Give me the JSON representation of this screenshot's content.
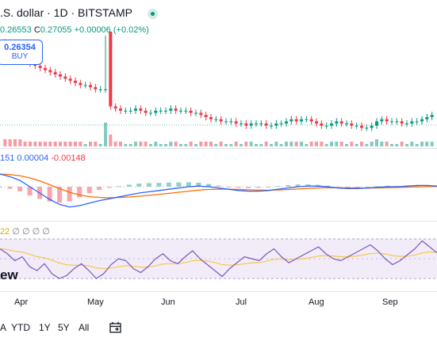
{
  "header": {
    "title": ".S. dollar · 1D · BITSTAMP",
    "ohlc": {
      "l_value": "0.26553",
      "c_label": "C",
      "c_value": "0.27055",
      "change": "+0.00006 (+0.02%)"
    },
    "buy_price": "0.26354",
    "buy_label": "BUY"
  },
  "macd": {
    "v1": "151",
    "v2": "0.00004",
    "v3": "-0.00148"
  },
  "rsi": {
    "prefix": "22",
    "zeros": "∅ ∅ ∅ ∅"
  },
  "watermark": "ew",
  "x_axis": [
    "Apr",
    "May",
    "Jun",
    "Jul",
    "Aug",
    "Sep"
  ],
  "range_buttons": [
    "A",
    "YTD",
    "1Y",
    "5Y",
    "All"
  ],
  "colors": {
    "up": "#089981",
    "down": "#f23645",
    "macd": "#2962ff",
    "signal": "#ff6d00",
    "rsi": "#7e57c2",
    "rsi_ma": "#f7c948"
  },
  "chart_data": {
    "type": "candlestick",
    "x_labels": [
      "Apr",
      "May",
      "Jun",
      "Jul",
      "Aug",
      "Sep"
    ],
    "price_series": [
      0.3,
      0.298,
      0.296,
      0.294,
      0.292,
      0.291,
      0.29,
      0.289,
      0.288,
      0.287,
      0.286,
      0.285,
      0.284,
      0.283,
      0.282,
      0.281,
      0.28,
      0.28,
      0.279,
      0.278,
      0.278,
      0.33,
      0.27,
      0.269,
      0.268,
      0.268,
      0.268,
      0.269,
      0.268,
      0.267,
      0.267,
      0.268,
      0.268,
      0.268,
      0.269,
      0.268,
      0.268,
      0.268,
      0.267,
      0.267,
      0.266,
      0.265,
      0.264,
      0.264,
      0.263,
      0.263,
      0.263,
      0.262,
      0.262,
      0.261,
      0.262,
      0.262,
      0.262,
      0.261,
      0.261,
      0.262,
      0.262,
      0.263,
      0.264,
      0.263,
      0.264,
      0.264,
      0.263,
      0.262,
      0.261,
      0.261,
      0.262,
      0.263,
      0.262,
      0.262,
      0.261,
      0.261,
      0.26,
      0.26,
      0.261,
      0.263,
      0.264,
      0.263,
      0.263,
      0.263,
      0.262,
      0.262,
      0.263,
      0.263,
      0.264,
      0.265,
      0.266
    ],
    "macd_series": [
      0.002,
      0.0016,
      0.001,
      0.0,
      -0.001,
      -0.002,
      -0.0028,
      -0.0032,
      -0.003,
      -0.0026,
      -0.0022,
      -0.0019,
      -0.0016,
      -0.0013,
      -0.001,
      -0.0008,
      -0.0006,
      -0.0004,
      -0.0002,
      0.0,
      0.0001,
      0.0,
      -0.0002,
      -0.0004,
      -0.0006,
      -0.0007,
      -0.0007,
      -0.0006,
      -0.0004,
      -0.0002,
      0.0,
      0.0001,
      0.0001,
      0.0,
      -0.0002,
      -0.0003,
      -0.0003,
      -0.0002,
      -0.0001,
      0.0,
      0.0,
      0.0001,
      0.0002,
      0.0002,
      0.0001
    ],
    "rsi_series": [
      60,
      55,
      48,
      52,
      42,
      38,
      45,
      35,
      30,
      33,
      40,
      45,
      38,
      30,
      35,
      44,
      50,
      48,
      40,
      36,
      42,
      50,
      55,
      48,
      45,
      52,
      58,
      50,
      44,
      38,
      32,
      40,
      46,
      52,
      50,
      48,
      55,
      60,
      52,
      46,
      50,
      54,
      58,
      62,
      55,
      50,
      48,
      52,
      56,
      60,
      64,
      58,
      50,
      44,
      48,
      54,
      60,
      68,
      62,
      56
    ]
  }
}
